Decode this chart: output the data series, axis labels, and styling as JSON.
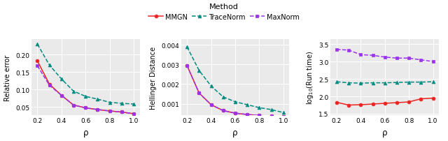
{
  "rho": [
    0.2,
    0.3,
    0.4,
    0.5,
    0.6,
    0.7,
    0.8,
    0.9,
    1.0
  ],
  "plot1": {
    "ylabel": "Relative error",
    "xlabel": "ρ",
    "ylim": [
      0.025,
      0.245
    ],
    "yticks": [
      0.05,
      0.1,
      0.15,
      0.2
    ],
    "yticklabels": [
      "0.05",
      "0.10",
      "0.15",
      "0.20"
    ],
    "MMGN": [
      0.182,
      0.115,
      0.083,
      0.055,
      0.047,
      0.042,
      0.038,
      0.035,
      0.03
    ],
    "TraceNorm": [
      0.23,
      0.17,
      0.13,
      0.095,
      0.08,
      0.072,
      0.063,
      0.06,
      0.058
    ],
    "MaxNorm": [
      0.168,
      0.112,
      0.083,
      0.055,
      0.047,
      0.042,
      0.038,
      0.035,
      0.03
    ]
  },
  "plot2": {
    "ylabel": "Hellinger Distance",
    "xlabel": "ρ",
    "ylim": [
      0.0004,
      0.0043
    ],
    "yticks": [
      0.001,
      0.002,
      0.003,
      0.004
    ],
    "yticklabels": [
      "0.001",
      "0.002",
      "0.003",
      "0.004"
    ],
    "MMGN": [
      0.00295,
      0.00155,
      0.00095,
      0.00065,
      0.00052,
      0.00045,
      0.0004,
      0.00037,
      0.00033
    ],
    "TraceNorm": [
      0.0039,
      0.0027,
      0.0019,
      0.00135,
      0.0011,
      0.00095,
      0.0008,
      0.0007,
      0.00055
    ],
    "MaxNorm": [
      0.00295,
      0.00155,
      0.00095,
      0.00065,
      0.00052,
      0.00045,
      0.0004,
      0.00037,
      0.00033
    ]
  },
  "plot3": {
    "ylabel": "log$_{10}$(Run time)",
    "xlabel": "ρ",
    "ylim": [
      1.45,
      3.65
    ],
    "yticks": [
      1.5,
      2.0,
      2.5,
      3.0,
      3.5
    ],
    "yticklabels": [
      "1.5",
      "2.0",
      "2.5",
      "3.0",
      "3.5"
    ],
    "MMGN": [
      1.83,
      1.75,
      1.76,
      1.78,
      1.8,
      1.82,
      1.84,
      1.93,
      1.95
    ],
    "TraceNorm": [
      2.42,
      2.39,
      2.38,
      2.39,
      2.39,
      2.4,
      2.41,
      2.41,
      2.42
    ],
    "MaxNorm": [
      3.35,
      3.33,
      3.2,
      3.18,
      3.13,
      3.1,
      3.1,
      3.05,
      3.0
    ]
  },
  "colors": {
    "MMGN": "#EE2222",
    "TraceNorm": "#008B80",
    "MaxNorm": "#9933EE"
  },
  "markers": {
    "MMGN": "o",
    "TraceNorm": "^",
    "MaxNorm": "s"
  },
  "linestyles": {
    "MMGN": "-",
    "TraceNorm": "--",
    "MaxNorm": "--"
  },
  "legend_title": "Method",
  "background_color": "#EAEAEA",
  "fig_background": "#FFFFFF"
}
